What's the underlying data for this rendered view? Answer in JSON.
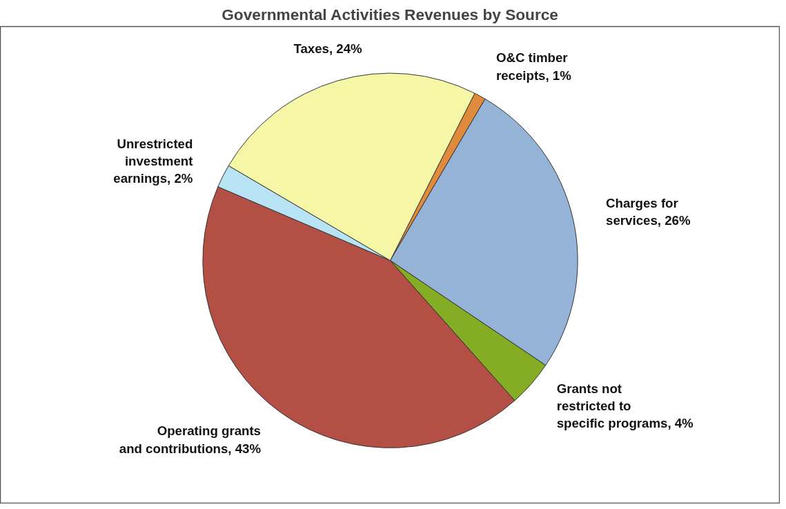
{
  "chart_data": {
    "type": "pie",
    "title": "Governmental Activities Revenues by Source",
    "categories": [
      "O&C timber receipts",
      "Charges for services",
      "Grants not restricted to specific programs",
      "Operating grants and contributions",
      "Unrestricted investment earnings",
      "Taxes"
    ],
    "values": [
      1,
      26,
      4,
      43,
      2,
      24
    ],
    "value_labels": [
      "1%",
      "26%",
      "4%",
      "43%",
      "2%",
      "24%"
    ],
    "colors": [
      "#e08a3c",
      "#95b3d7",
      "#84ac24",
      "#b34f45",
      "#b7e3f5",
      "#f5f7a6"
    ]
  }
}
